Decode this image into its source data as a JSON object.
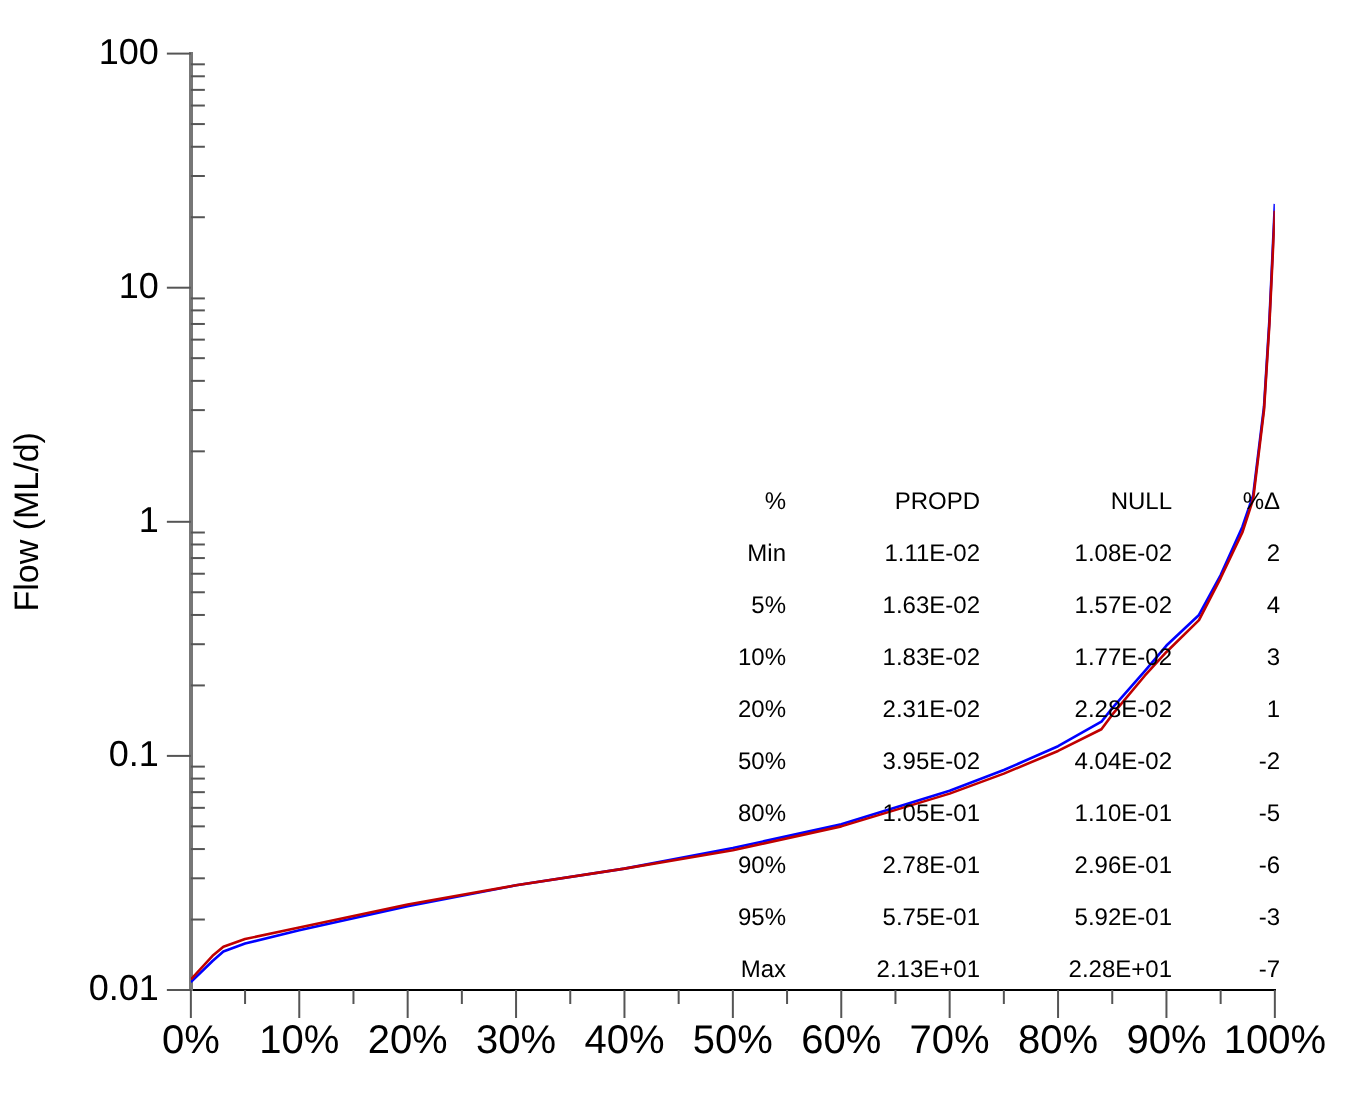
{
  "chart_data": {
    "type": "line",
    "ylabel": "Flow (ML/d)",
    "log": "y",
    "grid": false,
    "legend": false,
    "marker": "none",
    "line_style": "solid",
    "xlim": [
      0,
      100
    ],
    "ylim": [
      0.01,
      100
    ],
    "xticks": [
      {
        "value": 0,
        "label": "0%"
      },
      {
        "value": 5,
        "label": null
      },
      {
        "value": 10,
        "label": "10%"
      },
      {
        "value": 15,
        "label": null
      },
      {
        "value": 20,
        "label": "20%"
      },
      {
        "value": 25,
        "label": null
      },
      {
        "value": 30,
        "label": "30%"
      },
      {
        "value": 35,
        "label": null
      },
      {
        "value": 40,
        "label": "40%"
      },
      {
        "value": 45,
        "label": null
      },
      {
        "value": 50,
        "label": "50%"
      },
      {
        "value": 55,
        "label": null
      },
      {
        "value": 60,
        "label": "60%"
      },
      {
        "value": 65,
        "label": null
      },
      {
        "value": 70,
        "label": "70%"
      },
      {
        "value": 75,
        "label": null
      },
      {
        "value": 80,
        "label": "80%"
      },
      {
        "value": 85,
        "label": null
      },
      {
        "value": 90,
        "label": "90%"
      },
      {
        "value": 95,
        "label": null
      },
      {
        "value": 100,
        "label": "100%"
      }
    ],
    "yticks": [
      0.01,
      {
        "value": 0.02,
        "label": null
      },
      {
        "value": 0.03,
        "label": null
      },
      {
        "value": 0.04,
        "label": null
      },
      {
        "value": 0.05,
        "label": null
      },
      {
        "value": 0.06,
        "label": null
      },
      {
        "value": 0.07,
        "label": null
      },
      {
        "value": 0.08,
        "label": null
      },
      {
        "value": 0.09,
        "label": null
      },
      0.1,
      {
        "value": 0.2,
        "label": null
      },
      {
        "value": 0.3,
        "label": null
      },
      {
        "value": 0.4,
        "label": null
      },
      {
        "value": 0.5,
        "label": null
      },
      {
        "value": 0.6,
        "label": null
      },
      {
        "value": 0.7,
        "label": null
      },
      {
        "value": 0.8,
        "label": null
      },
      {
        "value": 0.9,
        "label": null
      },
      1,
      {
        "value": 2,
        "label": null
      },
      {
        "value": 3,
        "label": null
      },
      {
        "value": 4,
        "label": null
      },
      {
        "value": 5,
        "label": null
      },
      {
        "value": 6,
        "label": null
      },
      {
        "value": 7,
        "label": null
      },
      {
        "value": 8,
        "label": null
      },
      {
        "value": 9,
        "label": null
      },
      10,
      {
        "value": 20,
        "label": null
      },
      {
        "value": 30,
        "label": null
      },
      {
        "value": 40,
        "label": null
      },
      {
        "value": 50,
        "label": null
      },
      {
        "value": 60,
        "label": null
      },
      {
        "value": 70,
        "label": null
      },
      {
        "value": 80,
        "label": null
      },
      {
        "value": 90,
        "label": null
      },
      100
    ],
    "x": [
      0,
      2,
      3,
      5,
      10,
      20,
      30,
      40,
      50,
      60,
      70,
      75,
      80,
      84,
      85,
      88,
      90,
      93,
      95,
      97,
      98,
      99,
      99.5,
      100
    ],
    "series": [
      {
        "color": "#c00000",
        "values": [
          0.0111,
          0.014,
          0.0153,
          0.0165,
          0.0185,
          0.0232,
          0.028,
          0.033,
          0.0395,
          0.05,
          0.069,
          0.084,
          0.105,
          0.13,
          0.15,
          0.22,
          0.278,
          0.38,
          0.575,
          0.9,
          1.25,
          3,
          7,
          21.3
        ]
      },
      {
        "color": "#0000ff",
        "values": [
          0.0108,
          0.0133,
          0.0146,
          0.0158,
          0.018,
          0.0228,
          0.028,
          0.033,
          0.0404,
          0.051,
          0.071,
          0.087,
          0.11,
          0.14,
          0.16,
          0.23,
          0.296,
          0.4,
          0.592,
          0.95,
          1.3,
          3.1,
          7.3,
          22.8
        ]
      }
    ],
    "annotations": [
      "%",
      "PROPD",
      "NULL",
      "%Δ",
      "Min",
      "1.11E-02",
      "1.08E-02",
      "2",
      "5%",
      "1.63E-02",
      "1.57E-02",
      "4",
      "10%",
      "1.83E-02",
      "1.77E-02",
      "3",
      "20%",
      "2.31E-02",
      "2.28E-02",
      "1",
      "50%",
      "3.95E-02",
      "4.04E-02",
      "-2",
      "80%",
      "1.05E-01",
      "1.10E-01",
      "-5",
      "90%",
      "2.78E-01",
      "2.96E-01",
      "-6",
      "95%",
      "5.75E-01",
      "5.92E-01",
      "-3",
      "Max",
      "2.13E+01",
      "2.28E+01",
      "-7"
    ]
  }
}
